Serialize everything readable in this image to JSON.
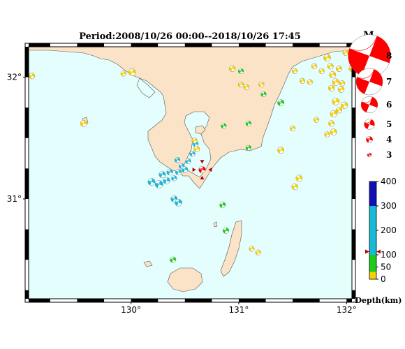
{
  "title": "Period:2008/10/26 00:00--2018/10/26 17:45",
  "map": {
    "sea_color": "#e4fdfd",
    "land_color": "#fae3c7",
    "coast_color": "#555555",
    "lon_ticks": [
      {
        "lon": 130,
        "label": "130°"
      },
      {
        "lon": 131,
        "label": "131°"
      },
      {
        "lon": 132,
        "label": "132°"
      }
    ],
    "lat_ticks": [
      {
        "lat": 32,
        "label": "32°"
      },
      {
        "lat": 31,
        "label": "31°"
      }
    ],
    "lon_range": [
      129.05,
      132.05
    ],
    "lat_range": [
      30.18,
      32.25
    ]
  },
  "magnitude_legend": {
    "header": "M",
    "items": [
      {
        "mag": 8,
        "label": "8"
      },
      {
        "mag": 7,
        "label": "7"
      },
      {
        "mag": 6,
        "label": "6"
      },
      {
        "mag": 5,
        "label": "5"
      },
      {
        "mag": 4,
        "label": "4"
      },
      {
        "mag": 3,
        "label": "3"
      }
    ],
    "color": "#ff0000"
  },
  "depth_scale": {
    "title": "Depth(km)",
    "ticks": [
      {
        "value": 400,
        "label": "400"
      },
      {
        "value": 300,
        "label": "300"
      },
      {
        "value": 200,
        "label": "200"
      },
      {
        "value": 100,
        "label": "100"
      },
      {
        "value": 50,
        "label": "50"
      },
      {
        "value": 0,
        "label": "0"
      }
    ],
    "bands": [
      {
        "from": 0,
        "to": 30,
        "color": "#f6d000"
      },
      {
        "from": 30,
        "to": 100,
        "color": "#1ccc1c"
      },
      {
        "from": 100,
        "to": 300,
        "color": "#18b9d6"
      },
      {
        "from": 300,
        "to": 400,
        "color": "#1010b4"
      }
    ],
    "marker_depth": 113
  },
  "highlight_event": {
    "lon": 130.66,
    "lat": 31.24,
    "depth": 10,
    "mag": 4.5,
    "color": "#ff0000"
  },
  "events": [
    {
      "lon": 129.08,
      "lat": 32.01,
      "depth": 10,
      "mag": 4.2,
      "color": "#f6d000"
    },
    {
      "lon": 129.56,
      "lat": 31.62,
      "depth": 10,
      "mag": 4.4,
      "color": "#f6d000"
    },
    {
      "lon": 129.93,
      "lat": 32.03,
      "depth": 10,
      "mag": 4.0,
      "color": "#f6d000"
    },
    {
      "lon": 130.01,
      "lat": 32.04,
      "depth": 10,
      "mag": 4.6,
      "color": "#f6d000"
    },
    {
      "lon": 130.39,
      "lat": 30.5,
      "depth": 60,
      "mag": 4.2,
      "color": "#1ccc1c"
    },
    {
      "lon": 130.19,
      "lat": 31.14,
      "depth": 160,
      "mag": 4.6,
      "color": "#18b9d6"
    },
    {
      "lon": 130.26,
      "lat": 31.12,
      "depth": 160,
      "mag": 4.8,
      "color": "#18b9d6"
    },
    {
      "lon": 130.29,
      "lat": 31.2,
      "depth": 160,
      "mag": 4.4,
      "color": "#18b9d6"
    },
    {
      "lon": 130.33,
      "lat": 31.15,
      "depth": 160,
      "mag": 4.5,
      "color": "#18b9d6"
    },
    {
      "lon": 130.36,
      "lat": 31.22,
      "depth": 160,
      "mag": 4.3,
      "color": "#18b9d6"
    },
    {
      "lon": 130.4,
      "lat": 31.17,
      "depth": 160,
      "mag": 4.0,
      "color": "#18b9d6"
    },
    {
      "lon": 130.44,
      "lat": 31.22,
      "depth": 160,
      "mag": 4.2,
      "color": "#18b9d6"
    },
    {
      "lon": 130.47,
      "lat": 31.27,
      "depth": 160,
      "mag": 4.0,
      "color": "#18b9d6"
    },
    {
      "lon": 130.5,
      "lat": 31.24,
      "depth": 160,
      "mag": 4.3,
      "color": "#18b9d6"
    },
    {
      "lon": 130.53,
      "lat": 31.31,
      "depth": 160,
      "mag": 4.0,
      "color": "#18b9d6"
    },
    {
      "lon": 130.57,
      "lat": 31.37,
      "depth": 160,
      "mag": 4.0,
      "color": "#18b9d6"
    },
    {
      "lon": 130.6,
      "lat": 31.45,
      "depth": 160,
      "mag": 4.0,
      "color": "#18b9d6"
    },
    {
      "lon": 130.43,
      "lat": 31.32,
      "depth": 160,
      "mag": 4.0,
      "color": "#18b9d6"
    },
    {
      "lon": 130.4,
      "lat": 31.0,
      "depth": 160,
      "mag": 4.4,
      "color": "#18b9d6"
    },
    {
      "lon": 130.44,
      "lat": 30.97,
      "depth": 160,
      "mag": 4.6,
      "color": "#18b9d6"
    },
    {
      "lon": 130.59,
      "lat": 31.48,
      "depth": 10,
      "mag": 4.0,
      "color": "#f6d000"
    },
    {
      "lon": 130.61,
      "lat": 31.41,
      "depth": 10,
      "mag": 4.2,
      "color": "#f6d000"
    },
    {
      "lon": 130.86,
      "lat": 31.6,
      "depth": 60,
      "mag": 4.0,
      "color": "#1ccc1c"
    },
    {
      "lon": 131.09,
      "lat": 31.62,
      "depth": 60,
      "mag": 4.0,
      "color": "#1ccc1c"
    },
    {
      "lon": 131.09,
      "lat": 31.42,
      "depth": 60,
      "mag": 4.0,
      "color": "#1ccc1c"
    },
    {
      "lon": 130.85,
      "lat": 30.95,
      "depth": 60,
      "mag": 4.2,
      "color": "#1ccc1c"
    },
    {
      "lon": 130.88,
      "lat": 30.74,
      "depth": 60,
      "mag": 4.2,
      "color": "#1ccc1c"
    },
    {
      "lon": 131.12,
      "lat": 30.59,
      "depth": 10,
      "mag": 4.0,
      "color": "#f6d000"
    },
    {
      "lon": 131.18,
      "lat": 30.56,
      "depth": 10,
      "mag": 4.0,
      "color": "#f6d000"
    },
    {
      "lon": 130.94,
      "lat": 32.07,
      "depth": 10,
      "mag": 4.3,
      "color": "#f6d000"
    },
    {
      "lon": 131.02,
      "lat": 32.05,
      "depth": 60,
      "mag": 4.0,
      "color": "#1ccc1c"
    },
    {
      "lon": 131.02,
      "lat": 31.94,
      "depth": 10,
      "mag": 4.0,
      "color": "#f6d000"
    },
    {
      "lon": 131.07,
      "lat": 31.92,
      "depth": 10,
      "mag": 4.0,
      "color": "#f6d000"
    },
    {
      "lon": 131.21,
      "lat": 31.94,
      "depth": 10,
      "mag": 4.0,
      "color": "#f6d000"
    },
    {
      "lon": 131.23,
      "lat": 31.86,
      "depth": 60,
      "mag": 4.0,
      "color": "#1ccc1c"
    },
    {
      "lon": 131.39,
      "lat": 31.79,
      "depth": 60,
      "mag": 4.4,
      "color": "#1ccc1c"
    },
    {
      "lon": 131.39,
      "lat": 31.4,
      "depth": 10,
      "mag": 4.4,
      "color": "#f6d000"
    },
    {
      "lon": 131.5,
      "lat": 31.58,
      "depth": 10,
      "mag": 4.0,
      "color": "#f6d000"
    },
    {
      "lon": 131.52,
      "lat": 32.05,
      "depth": 10,
      "mag": 4.0,
      "color": "#f6d000"
    },
    {
      "lon": 131.56,
      "lat": 31.17,
      "depth": 10,
      "mag": 4.4,
      "color": "#f6d000"
    },
    {
      "lon": 131.52,
      "lat": 31.1,
      "depth": 10,
      "mag": 4.3,
      "color": "#f6d000"
    },
    {
      "lon": 131.59,
      "lat": 31.97,
      "depth": 10,
      "mag": 4.0,
      "color": "#f6d000"
    },
    {
      "lon": 131.66,
      "lat": 31.96,
      "depth": 10,
      "mag": 4.0,
      "color": "#f6d000"
    },
    {
      "lon": 131.7,
      "lat": 32.09,
      "depth": 10,
      "mag": 4.0,
      "color": "#f6d000"
    },
    {
      "lon": 131.72,
      "lat": 31.65,
      "depth": 10,
      "mag": 4.0,
      "color": "#f6d000"
    },
    {
      "lon": 131.82,
      "lat": 32.16,
      "depth": 10,
      "mag": 4.6,
      "color": "#f6d000"
    },
    {
      "lon": 131.85,
      "lat": 32.09,
      "depth": 10,
      "mag": 4.2,
      "color": "#f6d000"
    },
    {
      "lon": 131.87,
      "lat": 32.02,
      "depth": 10,
      "mag": 4.4,
      "color": "#f6d000"
    },
    {
      "lon": 131.9,
      "lat": 31.96,
      "depth": 10,
      "mag": 4.5,
      "color": "#f6d000"
    },
    {
      "lon": 131.93,
      "lat": 32.07,
      "depth": 10,
      "mag": 4.2,
      "color": "#f6d000"
    },
    {
      "lon": 131.86,
      "lat": 31.91,
      "depth": 10,
      "mag": 4.3,
      "color": "#f6d000"
    },
    {
      "lon": 131.95,
      "lat": 31.9,
      "depth": 10,
      "mag": 4.3,
      "color": "#f6d000"
    },
    {
      "lon": 131.9,
      "lat": 31.8,
      "depth": 10,
      "mag": 4.6,
      "color": "#f6d000"
    },
    {
      "lon": 131.93,
      "lat": 31.73,
      "depth": 10,
      "mag": 4.3,
      "color": "#f6d000"
    },
    {
      "lon": 131.88,
      "lat": 31.7,
      "depth": 10,
      "mag": 4.5,
      "color": "#f6d000"
    },
    {
      "lon": 131.98,
      "lat": 31.77,
      "depth": 10,
      "mag": 4.5,
      "color": "#f6d000"
    },
    {
      "lon": 131.86,
      "lat": 31.62,
      "depth": 10,
      "mag": 4.2,
      "color": "#f6d000"
    },
    {
      "lon": 131.82,
      "lat": 31.53,
      "depth": 10,
      "mag": 4.0,
      "color": "#f6d000"
    },
    {
      "lon": 131.88,
      "lat": 31.55,
      "depth": 10,
      "mag": 4.4,
      "color": "#f6d000"
    },
    {
      "lon": 131.99,
      "lat": 32.2,
      "depth": 10,
      "mag": 4.0,
      "color": "#f6d000"
    },
    {
      "lon": 132.05,
      "lat": 32.07,
      "depth": 10,
      "mag": 4.3,
      "color": "#f6d000"
    },
    {
      "lon": 132.04,
      "lat": 32.16,
      "depth": 10,
      "mag": 4.0,
      "color": "#f6d000"
    },
    {
      "lon": 131.77,
      "lat": 32.05,
      "depth": 10,
      "mag": 4.0,
      "color": "#f6d000"
    },
    {
      "lon": 131.96,
      "lat": 31.95,
      "depth": 10,
      "mag": 4.0,
      "color": "#f6d000"
    }
  ]
}
